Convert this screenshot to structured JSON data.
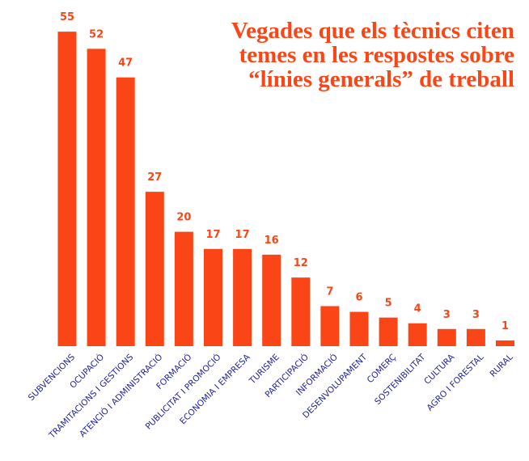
{
  "chart_data": {
    "type": "bar",
    "title": [
      "Vegades que els tècnics citen",
      "temes en les respostes sobre",
      "“línies generals” de treball"
    ],
    "categories": [
      "SUBVENCIONS",
      "OCUPACIÓ",
      "TRAMITACIONS I GESTIONS",
      "ATENCIÓ I ADMINISTRACIÓ",
      "FORMACIÓ",
      "PUBLICITAT I PROMOCIÓ",
      "ECONOMIA I EMPRESA",
      "TURISME",
      "PARTICIPACIÓ",
      "INFORMACIÓ",
      "DESENVOLUPAMENT",
      "COMERÇ",
      "SOSTENIBILITAT",
      "CULTURA",
      "AGRO I FORESTAL",
      "RURAL"
    ],
    "values": [
      55,
      52,
      47,
      27,
      20,
      17,
      17,
      16,
      12,
      7,
      6,
      5,
      4,
      3,
      3,
      1
    ],
    "color": "#fa4616",
    "label_color": "#1f1f9e"
  }
}
